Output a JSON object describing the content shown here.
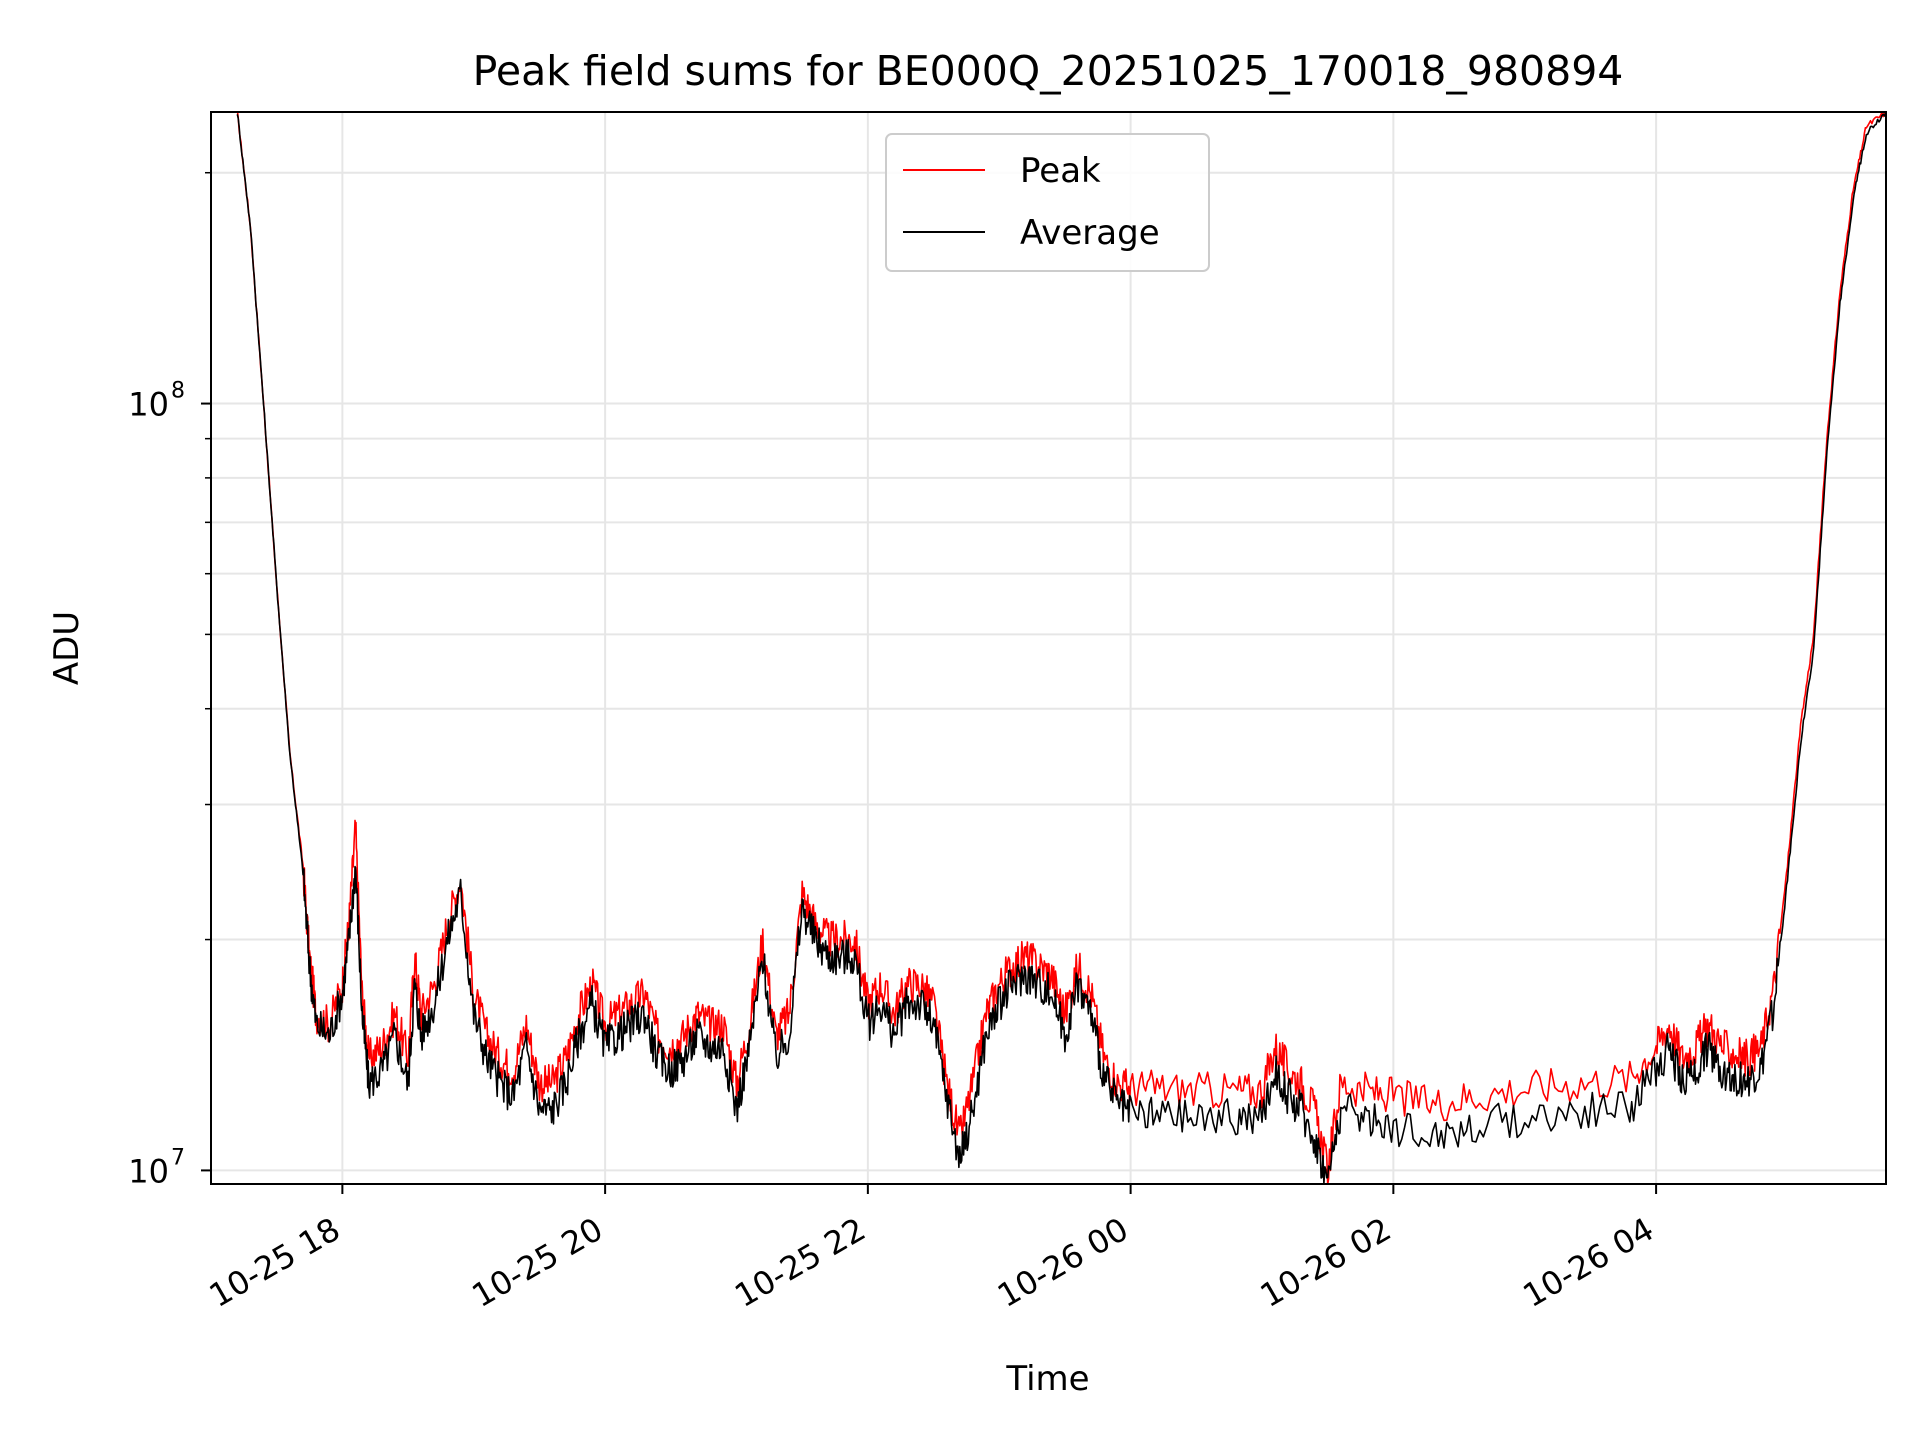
{
  "chart_data": {
    "type": "line",
    "title": "Peak field sums for BE000Q_20251025_170018_980894",
    "xlabel": "Time",
    "ylabel": "ADU",
    "yscale": "log",
    "ylim": [
      9600000.0,
      240000000.0
    ],
    "xlim_hours": [
      -1.0,
      11.75
    ],
    "x_unit": "hours since 2025-10-25 18:00",
    "grid": true,
    "legend_position": "upper center",
    "x_ticks": [
      {
        "hours": 0,
        "label": "10-25 18"
      },
      {
        "hours": 2,
        "label": "10-25 20"
      },
      {
        "hours": 4,
        "label": "10-25 22"
      },
      {
        "hours": 6,
        "label": "10-26 00"
      },
      {
        "hours": 8,
        "label": "10-26 02"
      },
      {
        "hours": 10,
        "label": "10-26 04"
      }
    ],
    "y_major_ticks": [
      {
        "value": 10000000,
        "base": "10",
        "exp": "7"
      },
      {
        "value": 100000000,
        "base": "10",
        "exp": "8"
      }
    ],
    "y_minor_ticks": [
      20000000,
      30000000,
      40000000,
      50000000,
      60000000,
      70000000,
      80000000,
      90000000,
      200000000
    ],
    "series": [
      {
        "name": "Peak",
        "color": "#ff0000",
        "points": [
          [
            -0.8,
            240000000.0
          ],
          [
            -0.7,
            170000000.0
          ],
          [
            -0.6,
            100000000.0
          ],
          [
            -0.5,
            58000000.0
          ],
          [
            -0.4,
            35000000.0
          ],
          [
            -0.3,
            25000000.0
          ],
          [
            -0.25,
            19000000.0
          ],
          [
            -0.2,
            16000000.0
          ],
          [
            -0.1,
            15500000.0
          ],
          [
            0.0,
            17500000.0
          ],
          [
            0.05,
            21000000.0
          ],
          [
            0.1,
            28000000.0
          ],
          [
            0.15,
            17000000.0
          ],
          [
            0.2,
            14000000.0
          ],
          [
            0.3,
            14500000.0
          ],
          [
            0.4,
            16000000.0
          ],
          [
            0.5,
            14000000.0
          ],
          [
            0.55,
            19000000.0
          ],
          [
            0.6,
            16000000.0
          ],
          [
            0.7,
            17500000.0
          ],
          [
            0.8,
            21000000.0
          ],
          [
            0.9,
            24000000.0
          ],
          [
            1.0,
            17000000.0
          ],
          [
            1.1,
            15000000.0
          ],
          [
            1.2,
            14000000.0
          ],
          [
            1.3,
            13500000.0
          ],
          [
            1.4,
            15500000.0
          ],
          [
            1.5,
            13000000.0
          ],
          [
            1.6,
            13000000.0
          ],
          [
            1.7,
            14000000.0
          ],
          [
            1.8,
            16000000.0
          ],
          [
            1.9,
            17500000.0
          ],
          [
            2.0,
            15500000.0
          ],
          [
            2.1,
            16000000.0
          ],
          [
            2.2,
            16500000.0
          ],
          [
            2.3,
            17000000.0
          ],
          [
            2.4,
            15000000.0
          ],
          [
            2.5,
            14500000.0
          ],
          [
            2.6,
            15000000.0
          ],
          [
            2.7,
            16000000.0
          ],
          [
            2.8,
            15500000.0
          ],
          [
            2.9,
            15500000.0
          ],
          [
            3.0,
            13000000.0
          ],
          [
            3.1,
            15500000.0
          ],
          [
            3.2,
            20000000.0
          ],
          [
            3.3,
            15000000.0
          ],
          [
            3.4,
            16000000.0
          ],
          [
            3.5,
            23000000.0
          ],
          [
            3.6,
            21000000.0
          ],
          [
            3.7,
            20000000.0
          ],
          [
            3.8,
            20000000.0
          ],
          [
            3.9,
            20000000.0
          ],
          [
            4.0,
            16500000.0
          ],
          [
            4.1,
            17500000.0
          ],
          [
            4.2,
            16000000.0
          ],
          [
            4.3,
            17500000.0
          ],
          [
            4.4,
            17500000.0
          ],
          [
            4.5,
            16500000.0
          ],
          [
            4.6,
            13000000.0
          ],
          [
            4.7,
            11000000.0
          ],
          [
            4.8,
            13000000.0
          ],
          [
            4.9,
            16000000.0
          ],
          [
            5.0,
            17500000.0
          ],
          [
            5.1,
            18500000.0
          ],
          [
            5.2,
            19000000.0
          ],
          [
            5.3,
            18500000.0
          ],
          [
            5.4,
            18000000.0
          ],
          [
            5.5,
            16000000.0
          ],
          [
            5.6,
            18500000.0
          ],
          [
            5.7,
            17000000.0
          ],
          [
            5.8,
            14000000.0
          ],
          [
            5.9,
            13000000.0
          ],
          [
            6.0,
            12800000.0
          ],
          [
            6.2,
            12800000.0
          ],
          [
            6.5,
            12700000.0
          ],
          [
            6.8,
            12700000.0
          ],
          [
            7.0,
            12700000.0
          ],
          [
            7.1,
            14500000.0
          ],
          [
            7.2,
            13500000.0
          ],
          [
            7.3,
            13000000.0
          ],
          [
            7.4,
            12000000.0
          ],
          [
            7.5,
            10000000.0
          ],
          [
            7.6,
            13000000.0
          ],
          [
            7.8,
            12700000.0
          ],
          [
            8.0,
            12500000.0
          ],
          [
            8.3,
            12200000.0
          ],
          [
            8.6,
            12500000.0
          ],
          [
            9.0,
            12800000.0
          ],
          [
            9.4,
            13000000.0
          ],
          [
            9.8,
            13200000.0
          ],
          [
            10.0,
            14500000.0
          ],
          [
            10.1,
            15500000.0
          ],
          [
            10.2,
            14000000.0
          ],
          [
            10.3,
            14500000.0
          ],
          [
            10.4,
            15500000.0
          ],
          [
            10.5,
            14500000.0
          ],
          [
            10.6,
            14200000.0
          ],
          [
            10.7,
            14000000.0
          ],
          [
            10.8,
            14500000.0
          ],
          [
            10.9,
            17500000.0
          ],
          [
            11.0,
            25000000.0
          ],
          [
            11.1,
            38000000.0
          ],
          [
            11.2,
            50000000.0
          ],
          [
            11.3,
            90000000.0
          ],
          [
            11.4,
            140000000.0
          ],
          [
            11.5,
            190000000.0
          ],
          [
            11.6,
            230000000.0
          ],
          [
            11.75,
            240000000.0
          ]
        ]
      },
      {
        "name": "Average",
        "color": "#000000",
        "points": [
          [
            -0.8,
            240000000.0
          ],
          [
            -0.7,
            170000000.0
          ],
          [
            -0.6,
            100000000.0
          ],
          [
            -0.5,
            58000000.0
          ],
          [
            -0.4,
            35000000.0
          ],
          [
            -0.3,
            24500000.0
          ],
          [
            -0.25,
            18500000.0
          ],
          [
            -0.2,
            15500000.0
          ],
          [
            -0.1,
            15000000.0
          ],
          [
            0.0,
            17000000.0
          ],
          [
            0.05,
            20000000.0
          ],
          [
            0.1,
            25000000.0
          ],
          [
            0.15,
            16000000.0
          ],
          [
            0.2,
            13000000.0
          ],
          [
            0.3,
            13500000.0
          ],
          [
            0.4,
            15000000.0
          ],
          [
            0.5,
            13000000.0
          ],
          [
            0.55,
            17500000.0
          ],
          [
            0.6,
            15000000.0
          ],
          [
            0.7,
            16500000.0
          ],
          [
            0.8,
            20000000.0
          ],
          [
            0.9,
            23000000.0
          ],
          [
            1.0,
            16000000.0
          ],
          [
            1.1,
            14000000.0
          ],
          [
            1.2,
            13000000.0
          ],
          [
            1.3,
            12500000.0
          ],
          [
            1.4,
            14500000.0
          ],
          [
            1.5,
            12000000.0
          ],
          [
            1.6,
            12000000.0
          ],
          [
            1.7,
            13000000.0
          ],
          [
            1.8,
            15000000.0
          ],
          [
            1.9,
            16500000.0
          ],
          [
            2.0,
            14500000.0
          ],
          [
            2.1,
            15000000.0
          ],
          [
            2.2,
            15500000.0
          ],
          [
            2.3,
            16000000.0
          ],
          [
            2.4,
            14000000.0
          ],
          [
            2.5,
            13500000.0
          ],
          [
            2.6,
            14000000.0
          ],
          [
            2.7,
            15000000.0
          ],
          [
            2.8,
            14500000.0
          ],
          [
            2.9,
            14500000.0
          ],
          [
            3.0,
            12000000.0
          ],
          [
            3.1,
            14500000.0
          ],
          [
            3.2,
            19000000.0
          ],
          [
            3.3,
            14000000.0
          ],
          [
            3.4,
            15000000.0
          ],
          [
            3.5,
            22000000.0
          ],
          [
            3.6,
            20000000.0
          ],
          [
            3.7,
            19000000.0
          ],
          [
            3.8,
            19000000.0
          ],
          [
            3.9,
            19000000.0
          ],
          [
            4.0,
            15500000.0
          ],
          [
            4.1,
            16500000.0
          ],
          [
            4.2,
            15000000.0
          ],
          [
            4.3,
            16500000.0
          ],
          [
            4.4,
            16500000.0
          ],
          [
            4.5,
            15500000.0
          ],
          [
            4.6,
            12500000.0
          ],
          [
            4.7,
            10300000.0
          ],
          [
            4.8,
            12000000.0
          ],
          [
            4.9,
            15000000.0
          ],
          [
            5.0,
            16500000.0
          ],
          [
            5.1,
            17500000.0
          ],
          [
            5.2,
            18000000.0
          ],
          [
            5.3,
            17500000.0
          ],
          [
            5.4,
            17000000.0
          ],
          [
            5.5,
            15000000.0
          ],
          [
            5.6,
            17500000.0
          ],
          [
            5.7,
            16000000.0
          ],
          [
            5.8,
            13200000.0
          ],
          [
            5.9,
            12200000.0
          ],
          [
            6.0,
            11800000.0
          ],
          [
            6.2,
            11800000.0
          ],
          [
            6.5,
            11700000.0
          ],
          [
            6.8,
            11700000.0
          ],
          [
            7.0,
            11700000.0
          ],
          [
            7.1,
            13500000.0
          ],
          [
            7.2,
            12500000.0
          ],
          [
            7.3,
            12000000.0
          ],
          [
            7.4,
            11000000.0
          ],
          [
            7.5,
            9700000.0
          ],
          [
            7.6,
            12000000.0
          ],
          [
            7.8,
            11700000.0
          ],
          [
            8.0,
            11400000.0
          ],
          [
            8.3,
            11100000.0
          ],
          [
            8.6,
            11400000.0
          ],
          [
            9.0,
            11700000.0
          ],
          [
            9.4,
            11900000.0
          ],
          [
            9.8,
            12100000.0
          ],
          [
            10.0,
            13500000.0
          ],
          [
            10.1,
            14500000.0
          ],
          [
            10.2,
            13000000.0
          ],
          [
            10.3,
            13500000.0
          ],
          [
            10.4,
            14500000.0
          ],
          [
            10.5,
            13500000.0
          ],
          [
            10.6,
            13200000.0
          ],
          [
            10.7,
            13000000.0
          ],
          [
            10.8,
            13500000.0
          ],
          [
            10.9,
            16500000.0
          ],
          [
            11.0,
            24000000.0
          ],
          [
            11.1,
            36000000.0
          ],
          [
            11.2,
            48000000.0
          ],
          [
            11.3,
            86000000.0
          ],
          [
            11.4,
            135000000.0
          ],
          [
            11.5,
            185000000.0
          ],
          [
            11.6,
            225000000.0
          ],
          [
            11.75,
            240000000.0
          ]
        ]
      }
    ]
  }
}
